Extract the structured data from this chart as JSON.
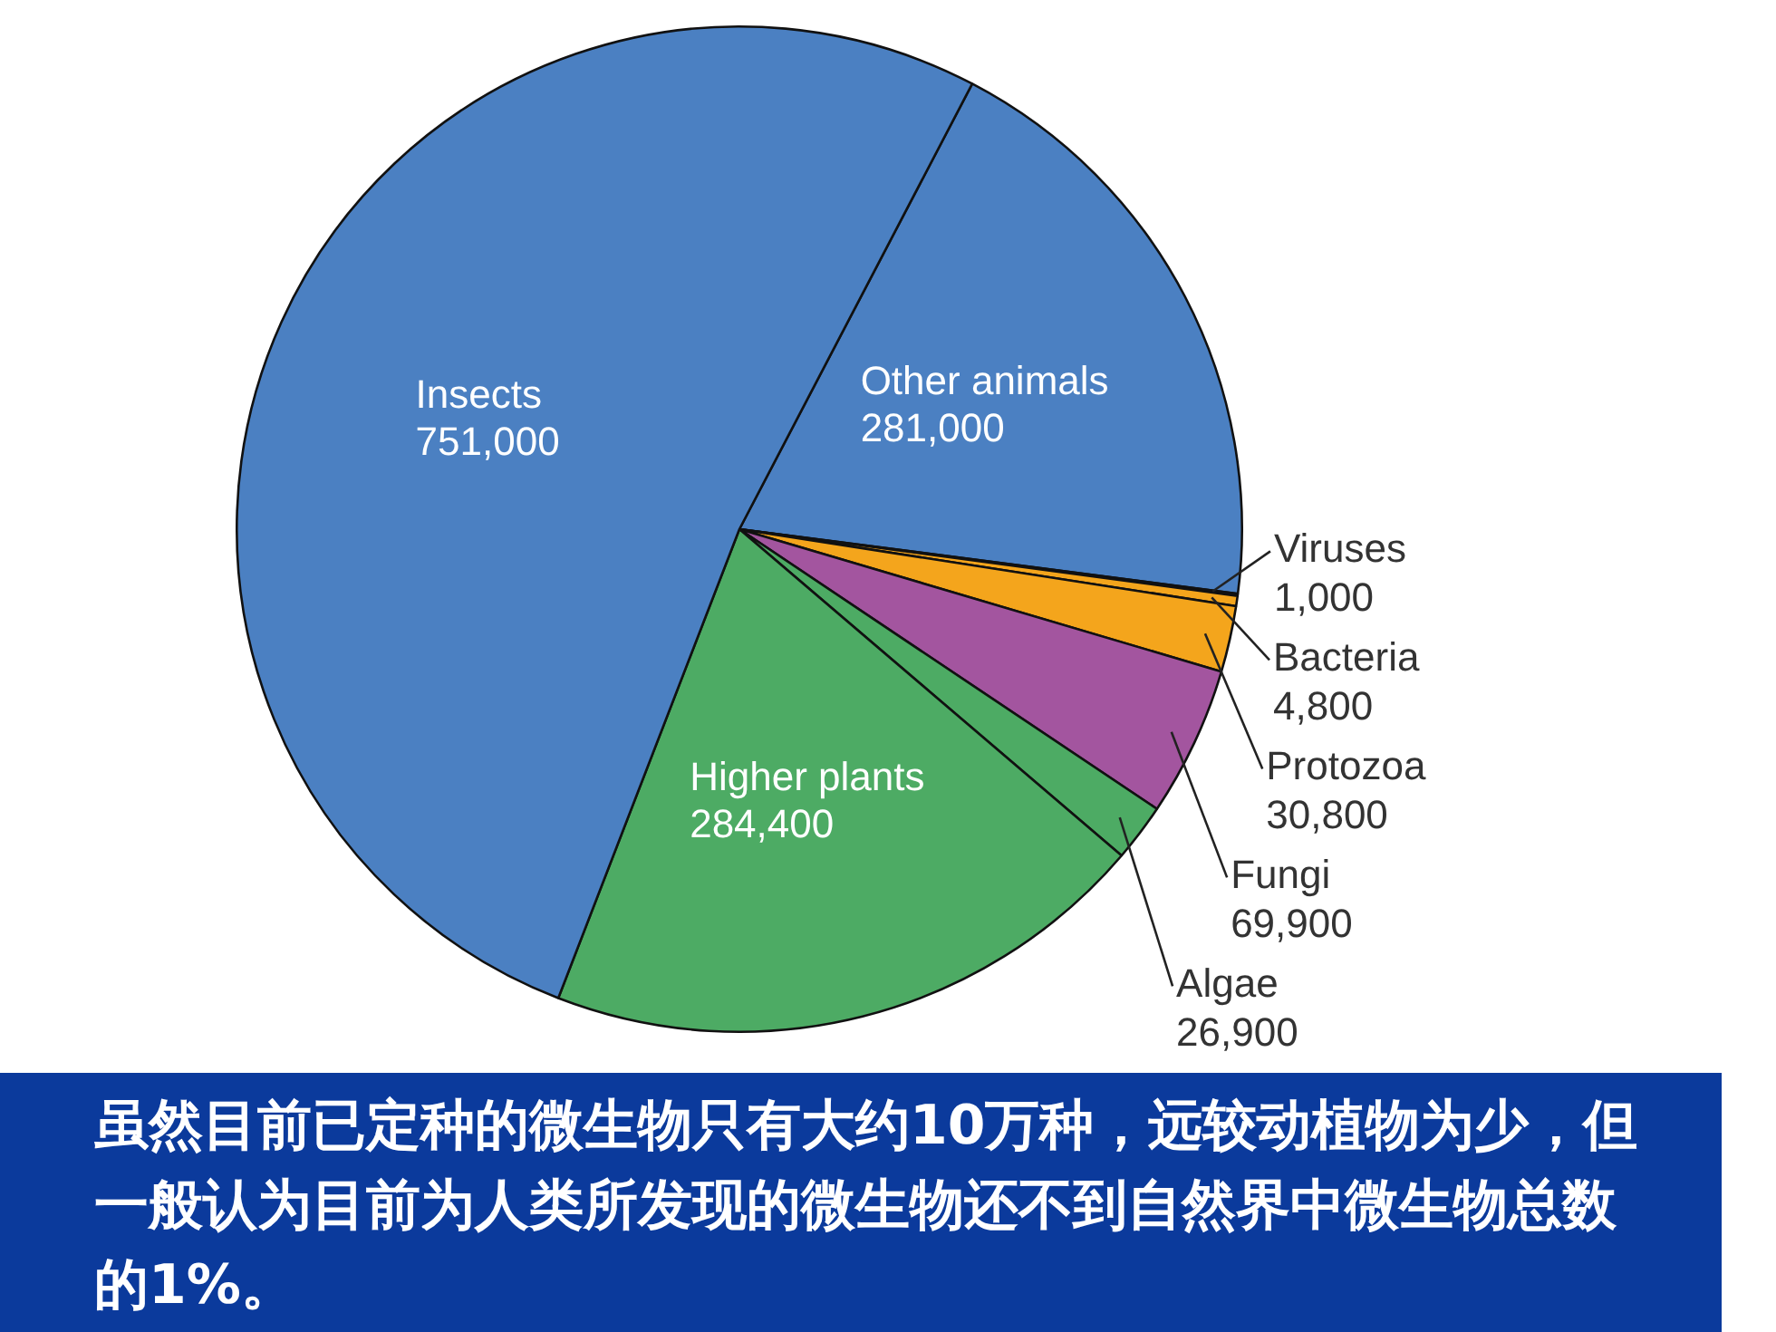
{
  "chart_data": {
    "type": "pie",
    "categories": [
      "Other animals",
      "Viruses",
      "Bacteria",
      "Protozoa",
      "Fungi",
      "Algae",
      "Higher plants",
      "Insects"
    ],
    "values": [
      281000,
      1000,
      4800,
      30800,
      69900,
      26900,
      284400,
      751000
    ],
    "colors": [
      "#4b80c2",
      "#ffffff",
      "#f4a51c",
      "#f4a51c",
      "#a3559f",
      "#4dab64",
      "#4dab64",
      "#4b80c2"
    ],
    "value_labels": [
      "281,000",
      "1,000",
      "4,800",
      "30,800",
      "69,900",
      "26,900",
      "284,400",
      "751,000"
    ],
    "legend": false,
    "annotations": [
      "虽然目前已定种的微生物只有大约10万种，远较动植物为少，但一般认为目前为人类所发现的微生物还不到自然界中微生物总数的1%。"
    ]
  }
}
